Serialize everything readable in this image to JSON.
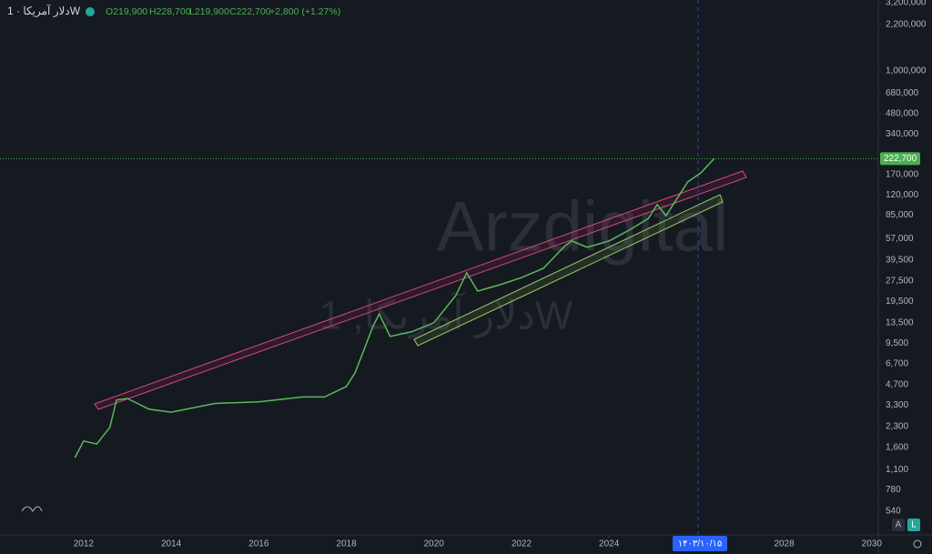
{
  "chart_data": {
    "type": "line",
    "log_scale": true,
    "color": "#5cb85c",
    "symbol": "دلار آمریکا · 1W",
    "ohlc": [
      "O219,900",
      "H228,700",
      "L219,900",
      "C222,700"
    ],
    "change": "+2,800 (+1.27%)",
    "watermark": "Arzdigital",
    "watermark_sub": "دلار آمریکا, 1W",
    "crosshair_date": "۱۴۰۳/۱۰/۱۵",
    "scale_buttons": [
      "A",
      "L"
    ],
    "last_price": {
      "value": 222700,
      "label": "222,700"
    },
    "x": [
      2011.8,
      2012.0,
      2012.3,
      2012.6,
      2012.75,
      2013.0,
      2013.5,
      2014,
      2015,
      2016,
      2017,
      2017.5,
      2018,
      2018.2,
      2018.4,
      2018.6,
      2018.75,
      2019,
      2019.5,
      2020,
      2020.5,
      2020.75,
      2021,
      2021.5,
      2022,
      2022.5,
      2023,
      2023.15,
      2023.5,
      2024,
      2024.5,
      2024.9,
      2025.1,
      2025.3,
      2025.6,
      2025.8,
      2026.1,
      2026.4
    ],
    "values": [
      1350,
      1790,
      1700,
      2260,
      3600,
      3700,
      3080,
      2930,
      3400,
      3500,
      3800,
      3800,
      4540,
      5740,
      8470,
      12500,
      15700,
      10700,
      11600,
      13500,
      21500,
      31700,
      23200,
      25800,
      29200,
      34200,
      50500,
      54600,
      49000,
      54600,
      66800,
      80200,
      101600,
      84000,
      119000,
      150000,
      175000,
      222700
    ],
    "xlim": [
      2010.09,
      2030.15
    ],
    "xticks": [
      2012,
      2014,
      2016,
      2018,
      2020,
      2022,
      2024,
      2028,
      2030
    ],
    "ylim": [
      360,
      3350000
    ],
    "yticks": [
      {
        "value": 3200000,
        "label": "3,200,000"
      },
      {
        "value": 2200000,
        "label": "2,200,000"
      },
      {
        "value": 1000000,
        "label": "1,000,000"
      },
      {
        "value": 680000,
        "label": "680,000"
      },
      {
        "value": 480000,
        "label": "480,000"
      },
      {
        "value": 340000,
        "label": "340,000"
      },
      {
        "value": 170000,
        "label": "170,000"
      },
      {
        "value": 120000,
        "label": "120,000"
      },
      {
        "value": 85000,
        "label": "85,000"
      },
      {
        "value": 57000,
        "label": "57,000"
      },
      {
        "value": 39500,
        "label": "39,500"
      },
      {
        "value": 27500,
        "label": "27,500"
      },
      {
        "value": 19500,
        "label": "19,500"
      },
      {
        "value": 13500,
        "label": "13,500"
      },
      {
        "value": 9500,
        "label": "9,500"
      },
      {
        "value": 6700,
        "label": "6,700"
      },
      {
        "value": 4700,
        "label": "4,700"
      },
      {
        "value": 3300,
        "label": "3,300"
      },
      {
        "value": 2300,
        "label": "2,300"
      },
      {
        "value": 1600,
        "label": "1,600"
      },
      {
        "value": 1100,
        "label": "1,100"
      },
      {
        "value": 780,
        "label": "780"
      },
      {
        "value": 540,
        "label": "540"
      }
    ]
  }
}
